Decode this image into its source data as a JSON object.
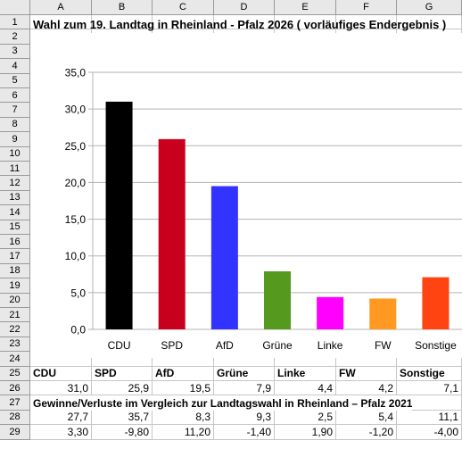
{
  "sheet": {
    "columns": [
      "A",
      "B",
      "C",
      "D",
      "E",
      "F",
      "G"
    ],
    "rows": [
      "1",
      "2",
      "3",
      "4",
      "5",
      "6",
      "7",
      "8",
      "9",
      "10",
      "11",
      "12",
      "13",
      "14",
      "15",
      "16",
      "17",
      "18",
      "19",
      "20",
      "21",
      "22",
      "23",
      "24",
      "25",
      "26",
      "27",
      "28",
      "29"
    ],
    "title": "Wahl zum 19. Landtag in Rheinland - Pfalz 2026 ( vorläufiges Endergebnis )",
    "row25": [
      "CDU",
      "SPD",
      "AfD",
      "Grüne",
      "Linke",
      "FW",
      "Sonstige"
    ],
    "row26": [
      "31,0",
      "25,9",
      "19,5",
      "7,9",
      "4,4",
      "4,2",
      "7,1"
    ],
    "row27": "Gewinne/Verluste im Vergleich zur Landtagswahl in Rheinland – Pfalz 2021",
    "row28": [
      "27,7",
      "35,7",
      "8,3",
      "9,3",
      "2,5",
      "5,4",
      "11,1"
    ],
    "row29": [
      "3,30",
      "-9,80",
      "11,20",
      "-1,40",
      "1,90",
      "-1,20",
      "-4,00"
    ]
  },
  "chart_data": {
    "type": "bar",
    "categories": [
      "CDU",
      "SPD",
      "AfD",
      "Grüne",
      "Linke",
      "FW",
      "Sonstige"
    ],
    "values": [
      31.0,
      25.9,
      19.5,
      7.9,
      4.4,
      4.2,
      7.1
    ],
    "colors": [
      "#000000",
      "#c8001e",
      "#3333ff",
      "#559a1e",
      "#ff00ff",
      "#ff9922",
      "#ff4411"
    ],
    "yticks": [
      "0,0",
      "5,0",
      "10,0",
      "15,0",
      "20,0",
      "25,0",
      "30,0",
      "35,0"
    ],
    "ylim": [
      0,
      35
    ],
    "grid": true,
    "legend": "none"
  }
}
